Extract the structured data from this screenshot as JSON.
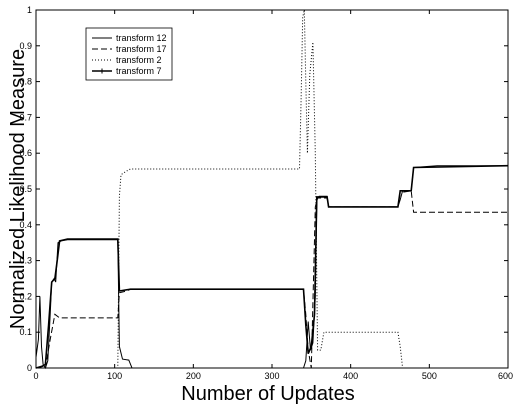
{
  "chart_data": {
    "type": "line",
    "title": "",
    "xlabel": "Number of Updates",
    "ylabel": "Normalized Likelihood Measure",
    "xlim": [
      0,
      600
    ],
    "ylim": [
      0,
      1
    ],
    "xticks": [
      "0",
      "100",
      "200",
      "300",
      "400",
      "500",
      "600"
    ],
    "yticks": [
      "0",
      "0.1",
      "0.2",
      "0.3",
      "0.4",
      "0.5",
      "0.6",
      "0.7",
      "0.8",
      "0.9",
      "1"
    ],
    "grid": false,
    "legend_position": "top-left",
    "series": [
      {
        "name": "transform 12",
        "style": "solid",
        "points": [
          [
            0,
            0.03
          ],
          [
            3,
            0.08
          ],
          [
            5,
            0.2
          ],
          [
            7,
            0.06
          ],
          [
            9,
            0.01
          ],
          [
            12,
            0.0
          ],
          [
            15,
            0.02
          ],
          [
            18,
            0.15
          ],
          [
            20,
            0.24
          ],
          [
            23,
            0.25
          ],
          [
            25,
            0.24
          ],
          [
            28,
            0.35
          ],
          [
            32,
            0.355
          ],
          [
            40,
            0.358
          ],
          [
            104,
            0.358
          ],
          [
            106,
            0.06
          ],
          [
            110,
            0.025
          ],
          [
            118,
            0.022
          ],
          [
            122,
            0.0
          ],
          [
            340,
            0.0
          ],
          [
            343,
            0.02
          ],
          [
            346,
            0.13
          ],
          [
            349,
            0.05
          ],
          [
            352,
            0.07
          ],
          [
            355,
            0.2
          ],
          [
            357,
            0.47
          ],
          [
            360,
            0.48
          ],
          [
            370,
            0.48
          ],
          [
            372,
            0.45
          ],
          [
            460,
            0.45
          ],
          [
            463,
            0.47
          ],
          [
            466,
            0.495
          ],
          [
            477,
            0.495
          ],
          [
            480,
            0.56
          ],
          [
            510,
            0.565
          ],
          [
            600,
            0.565
          ]
        ]
      },
      {
        "name": "transform 17",
        "style": "dashed",
        "points": [
          [
            0,
            0.0
          ],
          [
            12,
            0.0
          ],
          [
            18,
            0.08
          ],
          [
            24,
            0.15
          ],
          [
            30,
            0.14
          ],
          [
            104,
            0.14
          ],
          [
            106,
            0.21
          ],
          [
            115,
            0.215
          ],
          [
            120,
            0.22
          ],
          [
            340,
            0.22
          ],
          [
            343,
            0.15
          ],
          [
            346,
            0.05
          ],
          [
            350,
            0.0
          ],
          [
            355,
            0.45
          ],
          [
            358,
            0.475
          ],
          [
            370,
            0.475
          ],
          [
            372,
            0.45
          ],
          [
            460,
            0.45
          ],
          [
            463,
            0.49
          ],
          [
            477,
            0.495
          ],
          [
            480,
            0.435
          ],
          [
            600,
            0.435
          ]
        ]
      },
      {
        "name": "transform 2",
        "style": "dotted",
        "points": [
          [
            0,
            0.0
          ],
          [
            104,
            0.0
          ],
          [
            106,
            0.48
          ],
          [
            108,
            0.54
          ],
          [
            115,
            0.55
          ],
          [
            120,
            0.556
          ],
          [
            335,
            0.556
          ],
          [
            337,
            0.75
          ],
          [
            339,
            0.98
          ],
          [
            341,
            1.0
          ],
          [
            343,
            0.8
          ],
          [
            345,
            0.6
          ],
          [
            348,
            0.82
          ],
          [
            352,
            0.91
          ],
          [
            355,
            0.6
          ],
          [
            358,
            0.05
          ],
          [
            362,
            0.05
          ],
          [
            366,
            0.1
          ],
          [
            460,
            0.1
          ],
          [
            463,
            0.06
          ],
          [
            466,
            0.0
          ],
          [
            600,
            0.0
          ]
        ]
      },
      {
        "name": "transform 7",
        "style": "solid-thick",
        "points": [
          [
            0,
            0.0
          ],
          [
            8,
            0.005
          ],
          [
            12,
            0.01
          ],
          [
            16,
            0.12
          ],
          [
            20,
            0.24
          ],
          [
            24,
            0.25
          ],
          [
            27,
            0.3
          ],
          [
            30,
            0.355
          ],
          [
            40,
            0.36
          ],
          [
            104,
            0.36
          ],
          [
            106,
            0.215
          ],
          [
            120,
            0.22
          ],
          [
            340,
            0.22
          ],
          [
            343,
            0.12
          ],
          [
            346,
            0.04
          ],
          [
            350,
            0.06
          ],
          [
            354,
            0.15
          ],
          [
            357,
            0.478
          ],
          [
            370,
            0.478
          ],
          [
            372,
            0.45
          ],
          [
            460,
            0.45
          ],
          [
            463,
            0.495
          ],
          [
            477,
            0.495
          ],
          [
            480,
            0.56
          ],
          [
            600,
            0.565
          ]
        ]
      }
    ]
  }
}
